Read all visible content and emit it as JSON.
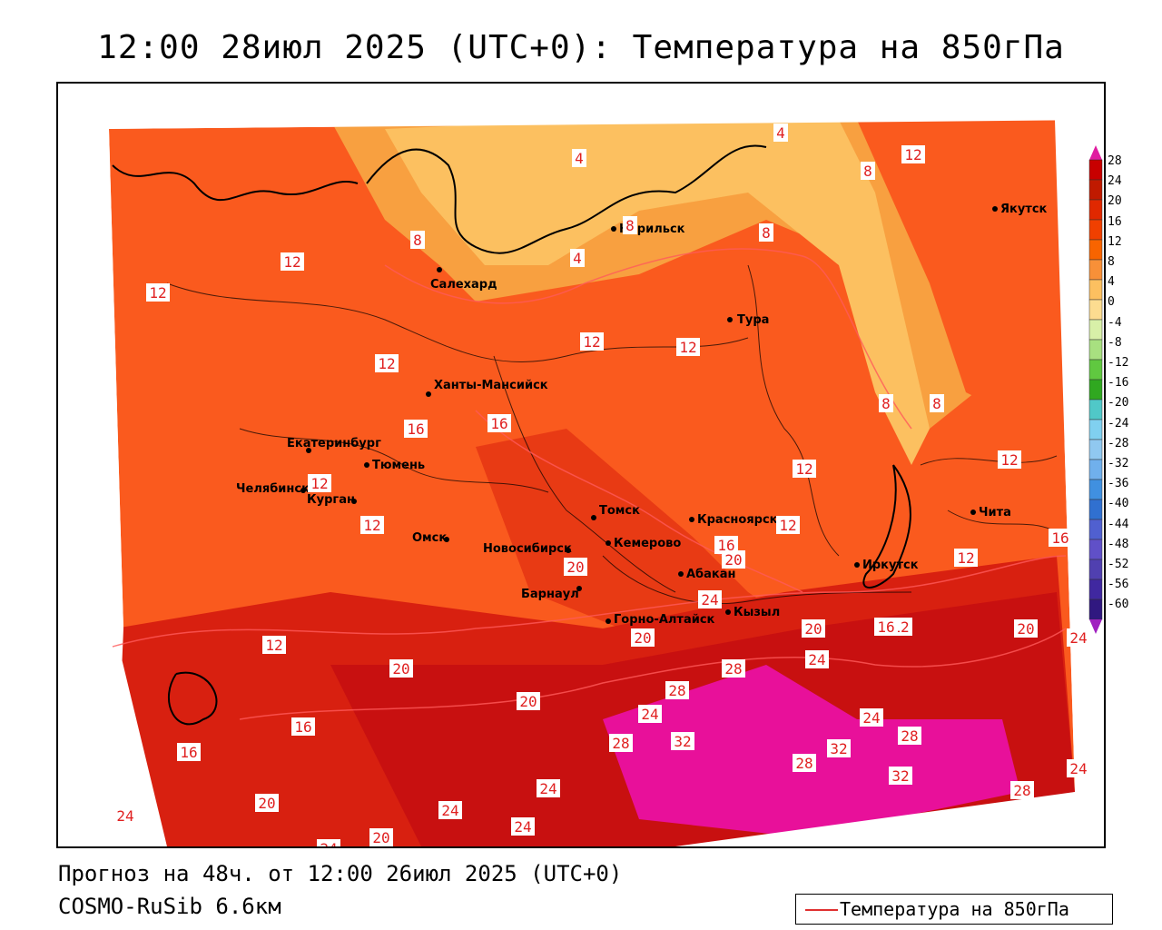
{
  "title": "12:00 28июл 2025 (UTC+0): Температура на 850гПа",
  "footer": {
    "forecast": "Прогноз на 48ч. от 12:00 26июл 2025 (UTC+0)",
    "model": "COSMO-RuSib 6.6км"
  },
  "legend": {
    "label": "Температура на 850гПа",
    "line_color": "#e03030"
  },
  "colorbar": {
    "ticks": [
      "28",
      "24",
      "20",
      "16",
      "12",
      "8",
      "4",
      "0",
      "-4",
      "-8",
      "-12",
      "-16",
      "-20",
      "-24",
      "-28",
      "-32",
      "-36",
      "-40",
      "-44",
      "-48",
      "-52",
      "-56",
      "-60"
    ],
    "colors": [
      "#c80000",
      "#c01a00",
      "#e02800",
      "#f04000",
      "#f86400",
      "#f89038",
      "#fcc060",
      "#fcdc90",
      "#d8f0a8",
      "#a8e080",
      "#60c840",
      "#30a820",
      "#50c8c8",
      "#80d0f0",
      "#90c8f0",
      "#70b0ec",
      "#4090e0",
      "#3070d0",
      "#5060d0",
      "#6050c8",
      "#5040b0",
      "#4028a0",
      "#301880"
    ],
    "top_color": "#e01ca0",
    "bottom_color": "#a020c0"
  },
  "cities": [
    {
      "name": "Якутск"
    },
    {
      "name": "Норильск"
    },
    {
      "name": "Салехард"
    },
    {
      "name": "Тура"
    },
    {
      "name": "Ханты-Мансийск"
    },
    {
      "name": "Екатеринбург"
    },
    {
      "name": "Тюмень"
    },
    {
      "name": "Челябинск"
    },
    {
      "name": "Курган"
    },
    {
      "name": "Омск"
    },
    {
      "name": "Новосибирск"
    },
    {
      "name": "Томск"
    },
    {
      "name": "Кемерово"
    },
    {
      "name": "Красноярск"
    },
    {
      "name": "Барнаул"
    },
    {
      "name": "Абакан"
    },
    {
      "name": "Горно-Алтайск"
    },
    {
      "name": "Кызыл"
    },
    {
      "name": "Иркутск"
    },
    {
      "name": "Чита"
    }
  ],
  "contour_labels": [
    "4",
    "4",
    "4",
    "8",
    "8",
    "8",
    "8",
    "8",
    "8",
    "12",
    "12",
    "12",
    "12",
    "12",
    "12",
    "12",
    "12",
    "12",
    "12",
    "12",
    "12",
    "12",
    "12",
    "16",
    "16",
    "16",
    "16",
    "16",
    "16",
    "16",
    "20",
    "20",
    "20",
    "20",
    "20",
    "20",
    "20",
    "20",
    "20",
    "24",
    "24",
    "24",
    "24",
    "24",
    "24",
    "24",
    "24",
    "24",
    "24",
    "24",
    "28",
    "28",
    "28",
    "28",
    "28",
    "28",
    "32",
    "32",
    "32"
  ]
}
